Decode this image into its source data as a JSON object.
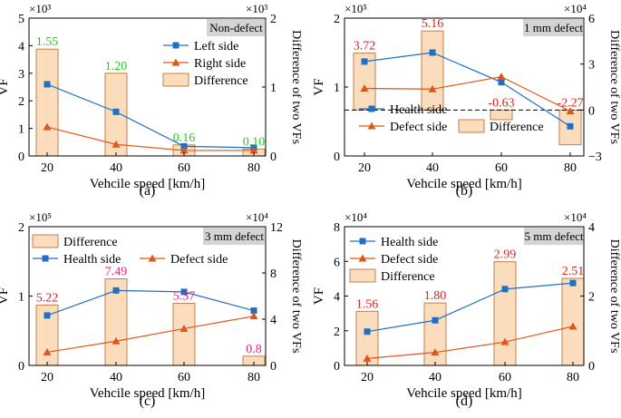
{
  "colors": {
    "left_series": "#1f6fc5",
    "right_series": "#e0571c",
    "bar_fill": "#fbdcbc",
    "bar_stroke": "#c0824a",
    "label_green": "#22cc22",
    "label_red": "#d92020",
    "label_magenta": "#dd1e88",
    "tag_bg": "#d4d4d4"
  },
  "chart_data": [
    {
      "type": "bar+line",
      "panel_label": "(a)",
      "tag": "Non-defect",
      "xlabel": "Vehcile speed [km/h]",
      "ylabel": "VF",
      "y2label": "Difference of two VFs",
      "categories": [
        "20",
        "40",
        "60",
        "80"
      ],
      "ylim": [
        0,
        5
      ],
      "yticks": [
        "0",
        "1",
        "2",
        "3",
        "4",
        "5"
      ],
      "y2lim": [
        0,
        2
      ],
      "y2ticks": [
        "0",
        "1",
        "2"
      ],
      "left_exp": "×10³",
      "right_exp": "×10³",
      "series": [
        {
          "name": "Left side",
          "values": [
            2.6,
            1.6,
            0.35,
            0.3
          ]
        },
        {
          "name": "Right side",
          "values": [
            1.05,
            0.42,
            0.2,
            0.2
          ]
        }
      ],
      "bars": {
        "name": "Difference",
        "values": [
          1.55,
          1.2,
          0.16,
          0.1
        ]
      },
      "bar_labels": [
        "1.55",
        "1.20",
        "0.16",
        "0.10"
      ],
      "bar_label_color": "green",
      "dashed_zero": false,
      "legend_order": [
        "line0",
        "line1",
        "bar"
      ]
    },
    {
      "type": "bar+line",
      "panel_label": "(b)",
      "tag": "1 mm defect",
      "xlabel": "Vehcile speed [km/h]",
      "ylabel": "VF",
      "y2label": "Difference of two VFs",
      "categories": [
        "20",
        "40",
        "60",
        "80"
      ],
      "ylim": [
        0,
        2
      ],
      "yticks": [
        "0",
        "1",
        "2"
      ],
      "y2lim": [
        -3,
        6
      ],
      "y2ticks": [
        "−3",
        "0",
        "3",
        "6"
      ],
      "left_exp": "×10⁵",
      "right_exp": "×10⁴",
      "series": [
        {
          "name": "Health side",
          "values": [
            1.37,
            1.5,
            1.07,
            0.43
          ]
        },
        {
          "name": "Defect side",
          "values": [
            0.98,
            0.97,
            1.15,
            0.65
          ]
        }
      ],
      "bars": {
        "name": "Difference",
        "values": [
          3.72,
          5.16,
          -0.63,
          -2.27
        ]
      },
      "bar_labels": [
        "3.72",
        "5.16",
        "-0.63",
        "-2.27"
      ],
      "bar_label_color": "red",
      "dashed_zero": true,
      "legend_order": [
        "line0",
        "line1",
        "bar"
      ]
    },
    {
      "type": "bar+line",
      "panel_label": "(c)",
      "tag": "3 mm defect",
      "xlabel": "Vehcile speed [km/h]",
      "ylabel": "VF",
      "y2label": "Difference of two VFs",
      "categories": [
        "20",
        "40",
        "60",
        "80"
      ],
      "ylim": [
        0,
        2
      ],
      "yticks": [
        "0",
        "1",
        "2"
      ],
      "y2lim": [
        0,
        12
      ],
      "y2ticks": [
        "0",
        "4",
        "8",
        "12"
      ],
      "left_exp": "×10⁵",
      "right_exp": "×10⁴",
      "series": [
        {
          "name": "Health side",
          "values": [
            0.72,
            1.08,
            1.06,
            0.79
          ]
        },
        {
          "name": "Defect side",
          "values": [
            0.19,
            0.35,
            0.53,
            0.71
          ]
        }
      ],
      "bars": {
        "name": "Difference",
        "values": [
          5.22,
          7.49,
          5.37,
          0.8
        ]
      },
      "bar_labels": [
        "5.22",
        "7.49",
        "5.37",
        "0.8"
      ],
      "bar_label_colors": [
        "red",
        "magenta",
        "magenta",
        "magenta"
      ],
      "dashed_zero": false,
      "legend_order": [
        "bar",
        "line0",
        "line1"
      ]
    },
    {
      "type": "bar+line",
      "panel_label": "(d)",
      "tag": "5 mm defect",
      "xlabel": "Vehcile speed [km/h]",
      "ylabel": "VF",
      "y2label": "Difference of two VFs",
      "categories": [
        "20",
        "40",
        "60",
        "80"
      ],
      "ylim": [
        0,
        8
      ],
      "yticks": [
        "0",
        "2",
        "4",
        "6",
        "8"
      ],
      "y2lim": [
        0,
        4
      ],
      "y2ticks": [
        "0",
        "2",
        "4"
      ],
      "left_exp": "×10⁴",
      "right_exp": "×10⁴",
      "series": [
        {
          "name": "Health side",
          "values": [
            1.95,
            2.6,
            4.4,
            4.75
          ]
        },
        {
          "name": "Defect side",
          "values": [
            0.4,
            0.75,
            1.35,
            2.25
          ]
        }
      ],
      "bars": {
        "name": "Difference",
        "values": [
          1.56,
          1.8,
          2.99,
          2.51
        ]
      },
      "bar_labels": [
        "1.56",
        "1.80",
        "2.99",
        "2.51"
      ],
      "bar_label_color": "red",
      "dashed_zero": false,
      "legend_order": [
        "line0",
        "line1",
        "bar"
      ]
    }
  ]
}
